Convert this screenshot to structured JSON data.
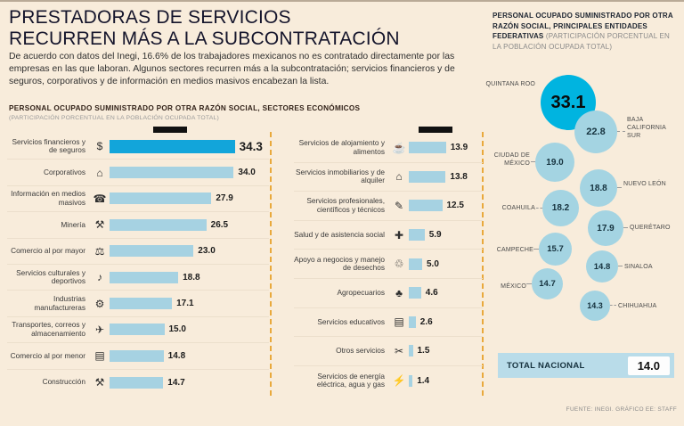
{
  "page": {
    "title_line1": "PRESTADORAS DE SERVICIOS",
    "title_line2": "RECURREN MÁS A LA SUBCONTRATACIÓN",
    "intro": "De acuerdo con datos del Inegi, 16.6% de los trabajadores mexicanos no es contratado directamente por las empresas en las que laboran. Algunos sectores recurren más a la subcontratación; servicios financieros y de seguros, corporativos y de información en medios masivos encabezan la lista.",
    "source": "FUENTE: INEGI. GRÁFICO EE: STAFF"
  },
  "sectors": {
    "header": "PERSONAL OCUPADO SUMINISTRADO POR OTRA RAZÓN SOCIAL, SECTORES ECONÓMICOS",
    "subheader": "(PARTICIPACIÓN PORCENTUAL EN LA POBLACIÓN OCUPADA TOTAL)",
    "col1": [
      {
        "label": "Servicios financieros y de seguros",
        "value": "34.3",
        "icon": "$"
      },
      {
        "label": "Corporativos",
        "value": "34.0",
        "icon": "⌂"
      },
      {
        "label": "Información en medios masivos",
        "value": "27.9",
        "icon": "☎"
      },
      {
        "label": "Minería",
        "value": "26.5",
        "icon": "⚒"
      },
      {
        "label": "Comercio al por mayor",
        "value": "23.0",
        "icon": "⚖"
      },
      {
        "label": "Servicios culturales y deportivos",
        "value": "18.8",
        "icon": "♪"
      },
      {
        "label": "Industrias manufactureras",
        "value": "17.1",
        "icon": "⚙"
      },
      {
        "label": "Transportes, correos y almacenamiento",
        "value": "15.0",
        "icon": "✈"
      },
      {
        "label": "Comercio al por menor",
        "value": "14.8",
        "icon": "▤"
      },
      {
        "label": "Construcción",
        "value": "14.7",
        "icon": "⚒"
      }
    ],
    "col2": [
      {
        "label": "Servicios de alojamiento y alimentos",
        "value": "13.9",
        "icon": "☕"
      },
      {
        "label": "Servicios inmobiliarios y de alquiler",
        "value": "13.8",
        "icon": "⌂"
      },
      {
        "label": "Servicios profesionales, científicos y técnicos",
        "value": "12.5",
        "icon": "✎"
      },
      {
        "label": "Salud y de asistencia social",
        "value": "5.9",
        "icon": "✚"
      },
      {
        "label": "Apoyo a negocios y manejo de desechos",
        "value": "5.0",
        "icon": "♲"
      },
      {
        "label": "Agropecuarios",
        "value": "4.6",
        "icon": "♣"
      },
      {
        "label": "Servicios educativos",
        "value": "2.6",
        "icon": "▤"
      },
      {
        "label": "Otros servicios",
        "value": "1.5",
        "icon": "✂"
      },
      {
        "label": "Servicios de energía eléctrica, agua y gas",
        "value": "1.4",
        "icon": "⚡"
      }
    ]
  },
  "states": {
    "header": "PERSONAL OCUPADO SUMINISTRADO POR OTRA RAZÓN SOCIAL, PRINCIPALES ENTIDADES FEDERATIVAS",
    "subheader": "(PARTICIPACIÓN PORCENTUAL EN LA POBLACIÓN OCUPADA TOTAL)",
    "items": [
      {
        "label": "QUINTANA ROO",
        "value": "33.1"
      },
      {
        "label": "BAJA CALIFORNIA SUR",
        "value": "22.8"
      },
      {
        "label": "CIUDAD DE MÉXICO",
        "value": "19.0"
      },
      {
        "label": "NUEVO LEÓN",
        "value": "18.8"
      },
      {
        "label": "COAHUILA",
        "value": "18.2"
      },
      {
        "label": "QUERÉTARO",
        "value": "17.9"
      },
      {
        "label": "CAMPECHE",
        "value": "15.7"
      },
      {
        "label": "SINALOA",
        "value": "14.8"
      },
      {
        "label": "MÉXICO",
        "value": "14.7"
      },
      {
        "label": "CHIHUAHUA",
        "value": "14.3"
      }
    ],
    "total_label": "TOTAL NACIONAL",
    "total_value": "14.0"
  },
  "colors": {
    "background": "#f8ecdb",
    "bar": "#a6d2e2",
    "bar_highlight": "#12a5da",
    "bubble": "#a4d4e2",
    "bubble_highlight": "#00b4e0",
    "dashed_guide": "#e9a93c"
  },
  "chart_data": [
    {
      "type": "bar",
      "orientation": "horizontal",
      "title": "PERSONAL OCUPADO SUMINISTRADO POR OTRA RAZÓN SOCIAL, SECTORES ECONÓMICOS",
      "subtitle": "(PARTICIPACIÓN PORCENTUAL EN LA POBLACIÓN OCUPADA TOTAL)",
      "categories": [
        "Servicios financieros y de seguros",
        "Corporativos",
        "Información en medios masivos",
        "Minería",
        "Comercio al por mayor",
        "Servicios culturales y deportivos",
        "Industrias manufactureras",
        "Transportes, correos y almacenamiento",
        "Comercio al por menor",
        "Construcción",
        "Servicios de alojamiento y alimentos",
        "Servicios inmobiliarios y de alquiler",
        "Servicios profesionales, científicos y técnicos",
        "Salud y de asistencia social",
        "Apoyo a negocios y manejo de desechos",
        "Agropecuarios",
        "Servicios educativos",
        "Otros servicios",
        "Servicios de energía eléctrica, agua y gas"
      ],
      "values": [
        34.3,
        34.0,
        27.9,
        26.5,
        23.0,
        18.8,
        17.1,
        15.0,
        14.8,
        14.7,
        13.9,
        13.8,
        12.5,
        5.9,
        5.0,
        4.6,
        2.6,
        1.5,
        1.4
      ],
      "unit": "%",
      "highlight_category": "Servicios financieros y de seguros",
      "xlim": [
        0,
        40
      ],
      "grid": false
    },
    {
      "type": "bubble",
      "title": "PERSONAL OCUPADO SUMINISTRADO POR OTRA RAZÓN SOCIAL, PRINCIPALES ENTIDADES FEDERATIVAS",
      "subtitle": "(PARTICIPACIÓN PORCENTUAL EN LA POBLACIÓN OCUPADA TOTAL)",
      "categories": [
        "QUINTANA ROO",
        "BAJA CALIFORNIA SUR",
        "CIUDAD DE MÉXICO",
        "NUEVO LEÓN",
        "COAHUILA",
        "QUERÉTARO",
        "CAMPECHE",
        "SINALOA",
        "MÉXICO",
        "CHIHUAHUA"
      ],
      "values": [
        33.1,
        22.8,
        19.0,
        18.8,
        18.2,
        17.9,
        15.7,
        14.8,
        14.7,
        14.3
      ],
      "unit": "%",
      "highlight_category": "QUINTANA ROO",
      "total": {
        "label": "TOTAL NACIONAL",
        "value": 14.0
      }
    }
  ]
}
